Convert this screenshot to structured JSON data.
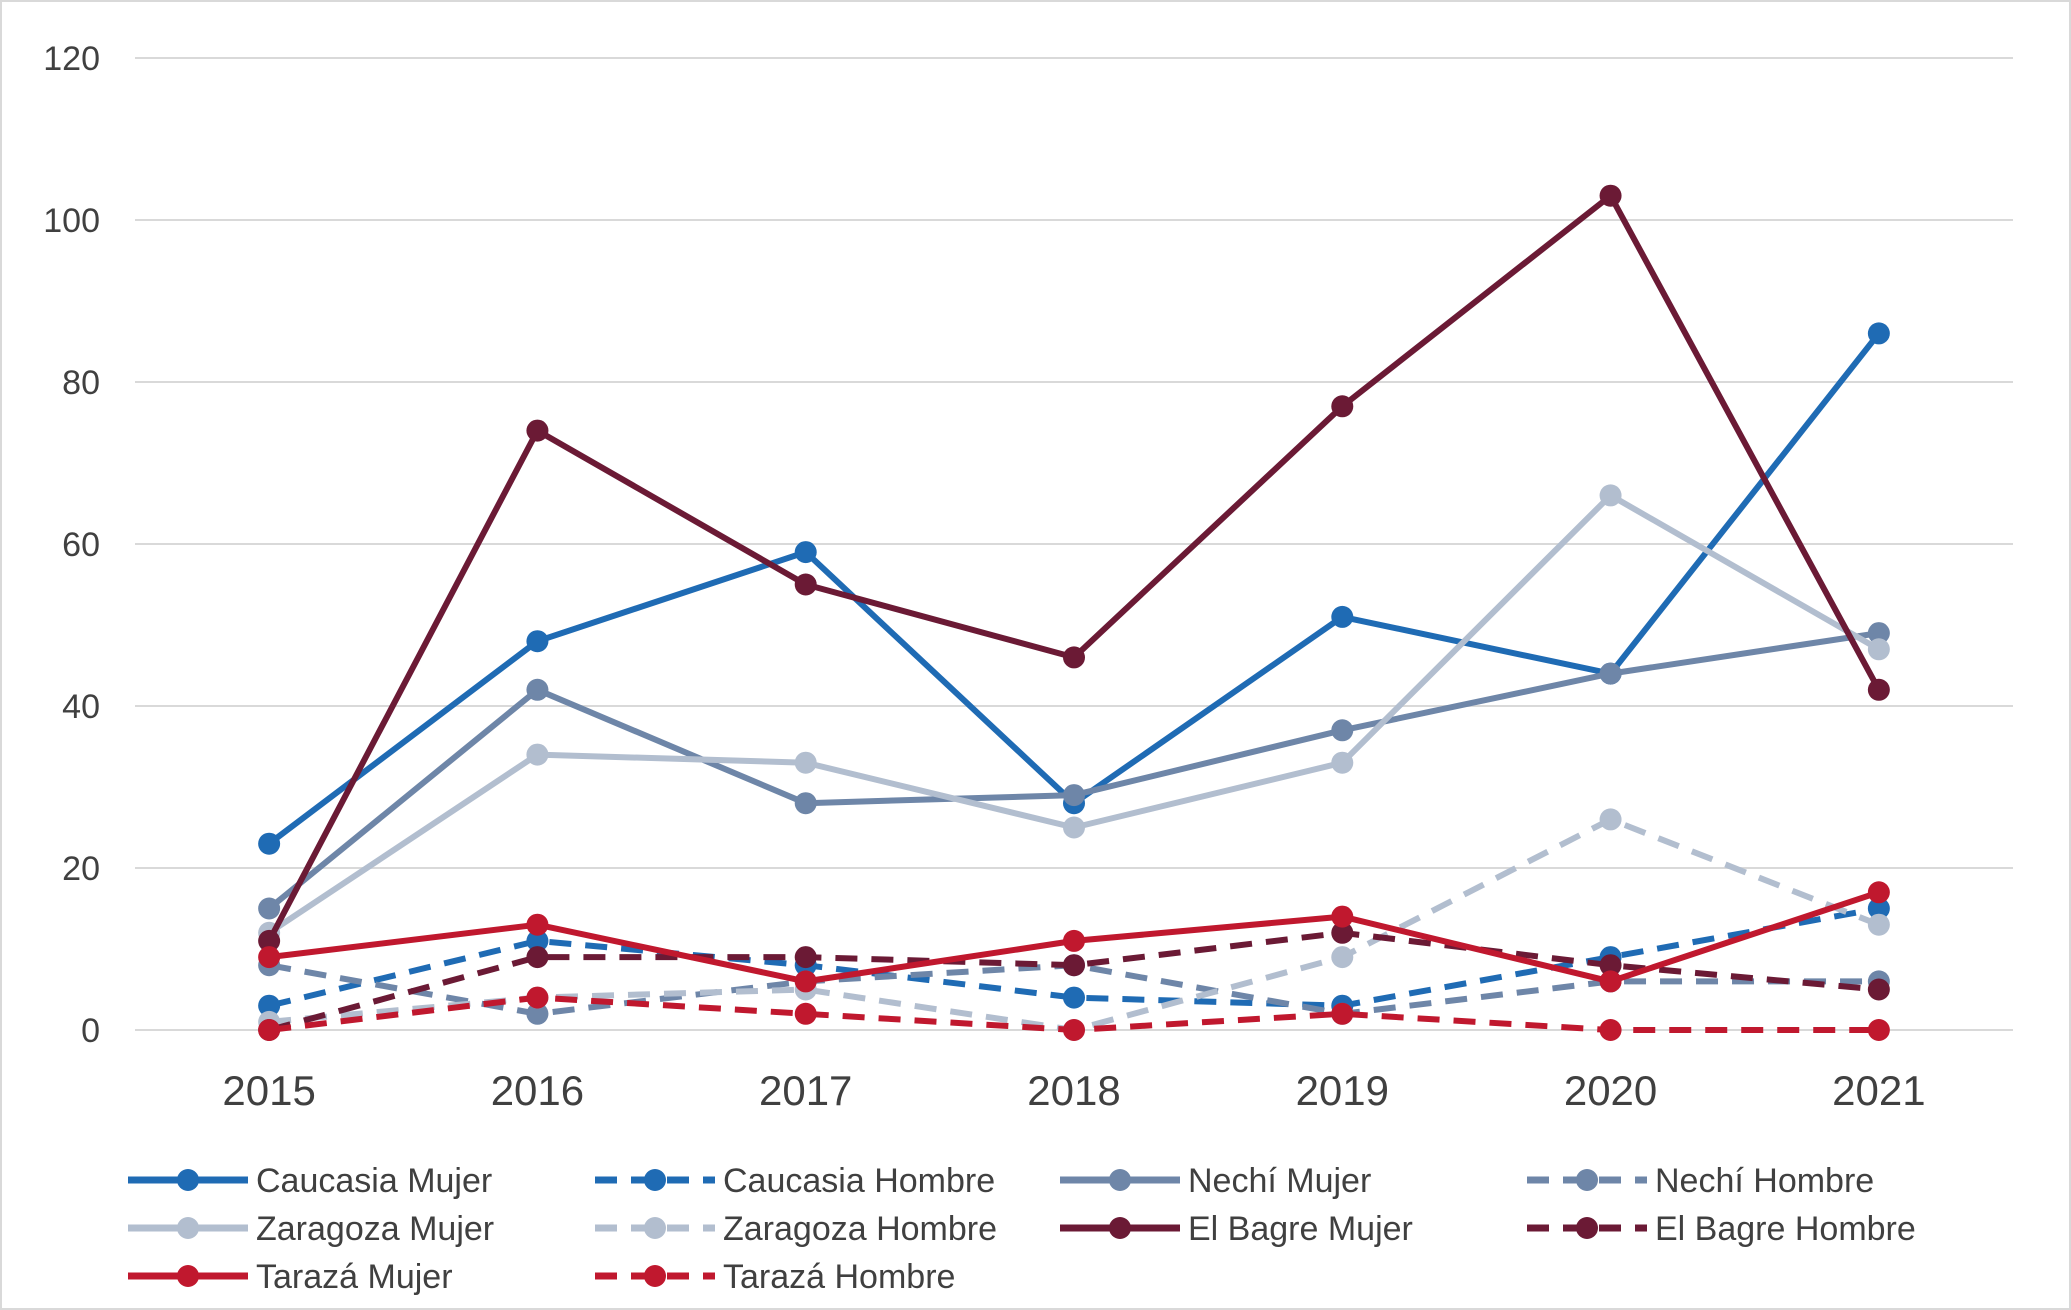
{
  "chart_data": {
    "type": "line",
    "title": "",
    "xlabel": "",
    "ylabel": "",
    "x": [
      "2015",
      "2016",
      "2017",
      "2018",
      "2019",
      "2020",
      "2021"
    ],
    "ylim": [
      0,
      120
    ],
    "yticks": [
      "0",
      "20",
      "40",
      "60",
      "80",
      "100",
      "120"
    ],
    "grid": "horizontal",
    "legend_position": "bottom",
    "series": [
      {
        "name": "Caucasia Mujer",
        "color": "#1F6BB4",
        "style": "solid",
        "values": [
          23,
          48,
          59,
          28,
          51,
          44,
          86
        ]
      },
      {
        "name": "Caucasia Hombre",
        "color": "#1F6BB4",
        "style": "dashed",
        "values": [
          3,
          11,
          8,
          4,
          3,
          9,
          15
        ]
      },
      {
        "name": "Nechí Mujer",
        "color": "#6E86A8",
        "style": "solid",
        "values": [
          15,
          42,
          28,
          29,
          37,
          44,
          49
        ]
      },
      {
        "name": "Nechí Hombre",
        "color": "#6E86A8",
        "style": "dashed",
        "values": [
          8,
          2,
          6,
          8,
          2,
          6,
          6
        ]
      },
      {
        "name": "Zaragoza Mujer",
        "color": "#B2BECF",
        "style": "solid",
        "values": [
          12,
          34,
          33,
          25,
          33,
          66,
          47
        ]
      },
      {
        "name": "Zaragoza Hombre",
        "color": "#B2BECF",
        "style": "dashed",
        "values": [
          1,
          4,
          5,
          0,
          9,
          26,
          13
        ]
      },
      {
        "name": "El Bagre Mujer",
        "color": "#6B1A35",
        "style": "solid",
        "values": [
          11,
          74,
          55,
          46,
          77,
          103,
          42
        ]
      },
      {
        "name": "El Bagre Hombre",
        "color": "#6B1A35",
        "style": "dashed",
        "values": [
          0,
          9,
          9,
          8,
          12,
          8,
          5
        ]
      },
      {
        "name": "Tarazá Mujer",
        "color": "#C0182E",
        "style": "solid",
        "values": [
          9,
          13,
          6,
          11,
          14,
          6,
          17
        ]
      },
      {
        "name": "Tarazá Hombre",
        "color": "#C0182E",
        "style": "dashed",
        "values": [
          0,
          4,
          2,
          0,
          2,
          0,
          0
        ]
      }
    ]
  }
}
